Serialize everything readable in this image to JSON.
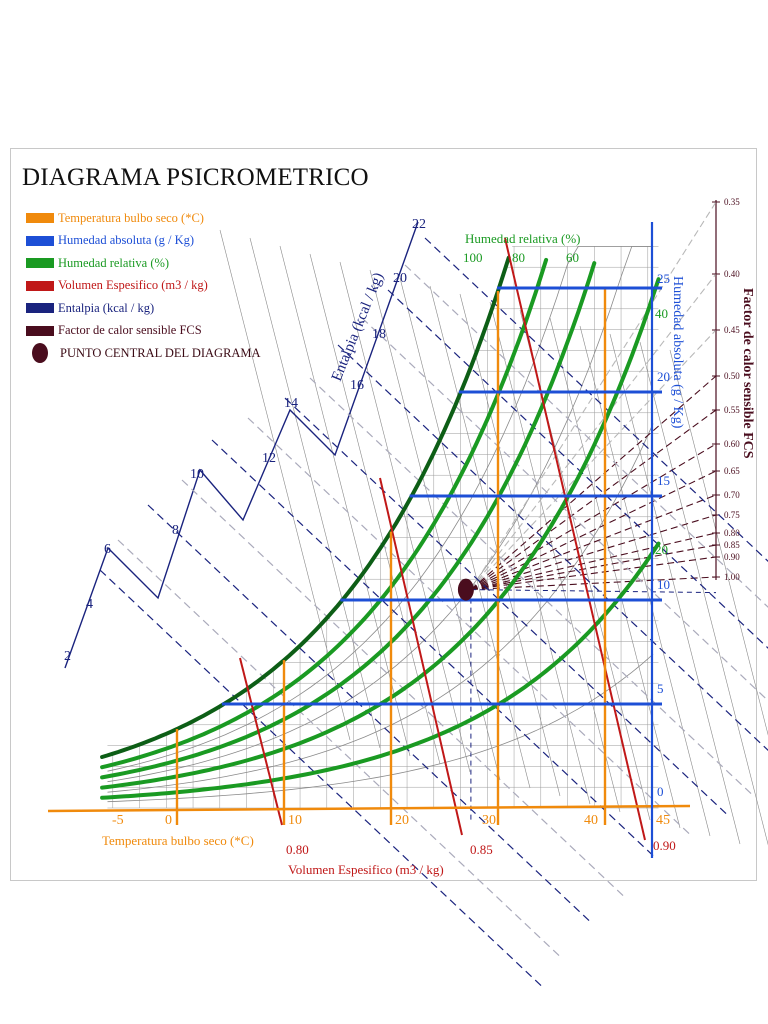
{
  "title": "DIAGRAMA PSICROMETRICO",
  "colors": {
    "dry_bulb": "#f08a0c",
    "abs_humidity": "#1d4fd6",
    "rel_humidity": "#1a9a22",
    "rel_humidity_dark": "#0d5e16",
    "specific_volume": "#c01818",
    "enthalpy": "#1a237e",
    "fcs": "#4a0d1e",
    "grid": "#9a9a9a"
  },
  "legend": [
    {
      "label": "Temperatura bulbo seco (*C)",
      "color": "#f08a0c"
    },
    {
      "label": "Humedad absoluta (g / Kg)",
      "color": "#1d4fd6"
    },
    {
      "label": "Humedad relativa (%)",
      "color": "#1a9a22"
    },
    {
      "label": "Volumen Espesifico (m3 / kg)",
      "color": "#c01818"
    },
    {
      "label": "Entalpia (kcal / kg)",
      "color": "#1a237e"
    },
    {
      "label": "Factor de calor sensible FCS",
      "color": "#4a0d1e"
    },
    {
      "label": "PUNTO CENTRAL DEL DIAGRAMA",
      "color": "#4a0d1e",
      "marker": "dot"
    }
  ],
  "chart_data": {
    "type": "psychrometric",
    "title": "DIAGRAMA PSICROMETRICO",
    "x_axis": {
      "label": "Temperatura bulbo seco (*C)",
      "ticks": [
        "-5",
        "0",
        "10",
        "20",
        "30",
        "40",
        "45"
      ]
    },
    "y_axis_right": {
      "label": "Humedad absoluta (g / Kg)",
      "ticks": [
        "0",
        "5",
        "10",
        "15",
        "20",
        "25"
      ]
    },
    "relative_humidity": {
      "label": "Humedad relativa (%)",
      "labeled_curves": [
        "100",
        "80",
        "60",
        "40",
        "20"
      ]
    },
    "specific_volume": {
      "label": "Volumen Espesifico (m3 / kg)",
      "labeled_lines": [
        "0.80",
        "0.85",
        "0.90"
      ]
    },
    "enthalpy": {
      "label": "Entalpia (kcal / kg)",
      "ticks": [
        "2",
        "4",
        "6",
        "8",
        "10",
        "12",
        "14",
        "16",
        "18",
        "20",
        "22"
      ]
    },
    "fcs": {
      "label": "Factor de calor sensible FCS",
      "ticks": [
        "0.35",
        "0.40",
        "0.45",
        "0.50",
        "0.55",
        "0.60",
        "0.65",
        "0.70",
        "0.75",
        "0.80",
        "0.85",
        "0.90",
        "1.00"
      ]
    },
    "central_point": {
      "label": "PUNTO CENTRAL DEL DIAGRAMA",
      "t": 27,
      "w": 10.5
    }
  }
}
